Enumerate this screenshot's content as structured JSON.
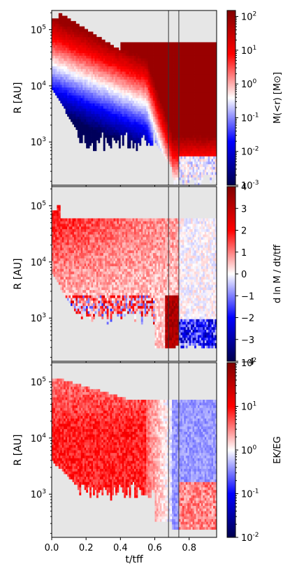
{
  "figure": {
    "xlabel": "t/tff",
    "x_ticks": [
      "0.0",
      "0.2",
      "0.4",
      "0.6",
      "0.8"
    ],
    "x_tick_values": [
      0.0,
      0.2,
      0.4,
      0.6,
      0.8
    ],
    "xlim": [
      0.0,
      0.96
    ],
    "vertical_lines_t": [
      0.68,
      0.74
    ],
    "cmap": "seismic",
    "missing_color": "#e6e6e6"
  },
  "chart_data": [
    {
      "type": "heatmap",
      "ylabel": "R  [AU]",
      "y_scale": "log",
      "ylim_au": [
        170,
        220000
      ],
      "y_ticks": [
        "10^5",
        "10^4",
        "10^3"
      ],
      "y_tick_values": [
        100000,
        10000,
        1000
      ],
      "colorbar_label": "M(<r)  [M⊙]",
      "colorbar_scale": "log",
      "colorbar_range": [
        0.001,
        150
      ],
      "colorbar_ticks": [
        "10^2",
        "10^1",
        "10^0",
        "10^-1",
        "10^-2",
        "10^-3"
      ],
      "colorbar_tick_values": [
        100,
        10,
        1,
        0.1,
        0.01,
        0.001
      ]
    },
    {
      "type": "heatmap",
      "ylabel": "R  [AU]",
      "y_scale": "log",
      "ylim_au": [
        170,
        220000
      ],
      "y_ticks": [
        "10^5",
        "10^4",
        "10^3"
      ],
      "y_tick_values": [
        100000,
        10000,
        1000
      ],
      "colorbar_label": "d ln M / dt/tff",
      "colorbar_scale": "linear",
      "colorbar_range": [
        -4,
        4
      ],
      "colorbar_ticks": [
        "4",
        "3",
        "2",
        "1",
        "0",
        "−1",
        "−2",
        "−3",
        "−4"
      ],
      "colorbar_tick_values": [
        4,
        3,
        2,
        1,
        0,
        -1,
        -2,
        -3,
        -4
      ]
    },
    {
      "type": "heatmap",
      "ylabel": "R  [AU]",
      "y_scale": "log",
      "ylim_au": [
        170,
        220000
      ],
      "y_ticks": [
        "10^5",
        "10^4",
        "10^3"
      ],
      "y_tick_values": [
        100000,
        10000,
        1000
      ],
      "colorbar_label": "EK/EG",
      "colorbar_scale": "log",
      "colorbar_range": [
        0.01,
        100
      ],
      "colorbar_ticks": [
        "10^2",
        "10^1",
        "10^0",
        "10^-1",
        "10^-2"
      ],
      "colorbar_tick_values": [
        100,
        10,
        1,
        0.1,
        0.01
      ]
    }
  ]
}
